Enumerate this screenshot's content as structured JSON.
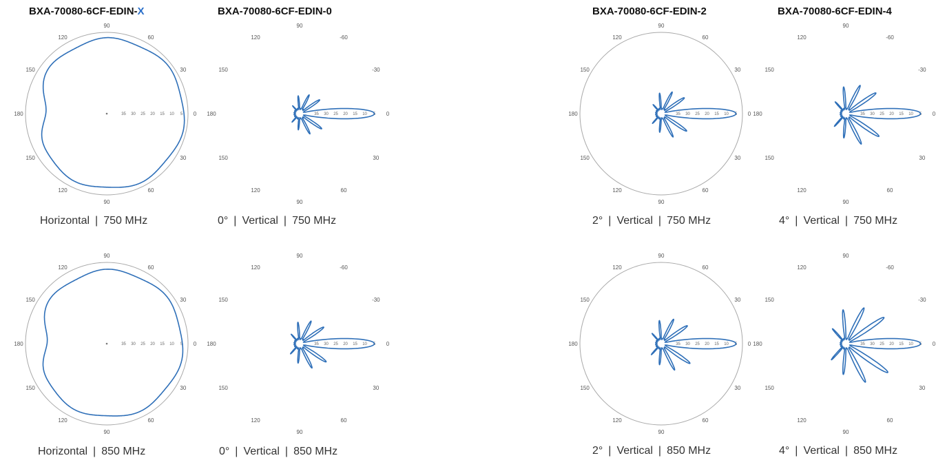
{
  "headings": [
    {
      "prefix": "BXA-70080-6CF-EDIN-",
      "suffix": "X"
    },
    {
      "prefix": "BXA-70080-6CF-EDIN-0",
      "suffix": ""
    },
    {
      "prefix": "BXA-70080-6CF-EDIN-2",
      "suffix": ""
    },
    {
      "prefix": "BXA-70080-6CF-EDIN-4",
      "suffix": ""
    }
  ],
  "angle_labels_full": [
    "90",
    "120",
    "60",
    "150",
    "30",
    "180",
    "0",
    "150",
    "30",
    "120",
    "60",
    "90"
  ],
  "angle_labels_open": [
    "90",
    "120",
    "-60",
    "150",
    "-30",
    "180",
    "0",
    "150",
    "30",
    "120",
    "60",
    "90"
  ],
  "radial_labels": [
    "5",
    "10",
    "15",
    "20",
    "25",
    "30",
    "35"
  ],
  "plots": [
    {
      "name": "plot-x-750",
      "type": "omni",
      "caption": [
        "Horizontal",
        "750 MHz"
      ],
      "frame": "full"
    },
    {
      "name": "plot-0-750",
      "type": "lobe",
      "caption": [
        "0°",
        "Vertical",
        "750 MHz"
      ],
      "frame": "open"
    },
    {
      "name": "plot-2-750",
      "type": "lobe",
      "caption": [
        "2°",
        "Vertical",
        "750 MHz"
      ],
      "frame": "full"
    },
    {
      "name": "plot-4-750",
      "type": "lobe",
      "caption": [
        "4°",
        "Vertical",
        "750 MHz"
      ],
      "frame": "open"
    },
    {
      "name": "plot-x-850",
      "type": "omni",
      "caption": [
        "Horizontal",
        "850 MHz"
      ],
      "frame": "full"
    },
    {
      "name": "plot-0-850",
      "type": "lobe",
      "caption": [
        "0°",
        "Vertical",
        "850 MHz"
      ],
      "frame": "open"
    },
    {
      "name": "plot-2-850",
      "type": "lobe",
      "caption": [
        "2°",
        "Vertical",
        "850 MHz"
      ],
      "frame": "full"
    },
    {
      "name": "plot-4-850",
      "type": "lobe",
      "caption": [
        "4°",
        "Vertical",
        "850 MHz"
      ],
      "frame": "open"
    }
  ],
  "colors": {
    "pattern": "#2e6fb8",
    "ring": "#a8a8a8",
    "accent": "#2a6fc9"
  }
}
